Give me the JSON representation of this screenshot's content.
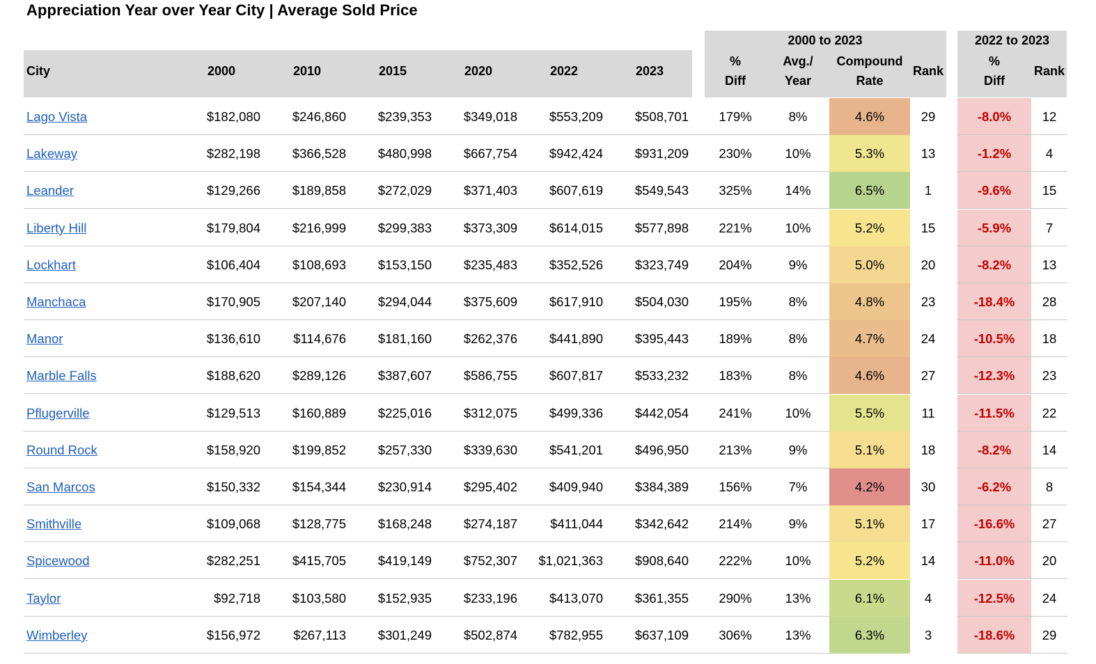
{
  "title": "Appreciation Year over Year City | Average Sold Price",
  "headers": {
    "city": "City",
    "y2000": "2000",
    "y2010": "2010",
    "y2015": "2015",
    "y2020": "2020",
    "y2022": "2022",
    "y2023": "2023",
    "group1": "2000 to 2023",
    "pct_diff_line1": "%",
    "pct_diff_line2": "Diff",
    "avg_line1": "Avg./",
    "avg_line2": "Year",
    "compound_line1": "Compound",
    "compound_line2": "Rate",
    "rank": "Rank",
    "group2": "2022 to 2023",
    "pct_diff2_line1": "%",
    "pct_diff2_line2": "Diff",
    "rank2": "Rank"
  },
  "colors": {
    "header_bg": "#d9d9d9",
    "link": "#1f5fbf",
    "negative_text": "#c00000",
    "negative_bg": "#f4cccc"
  },
  "rows": [
    {
      "city": "Lago Vista",
      "y2000": "$182,080",
      "y2010": "$246,860",
      "y2015": "$239,353",
      "y2020": "$349,018",
      "y2022": "$553,209",
      "y2023": "$508,701",
      "pct_diff": "179%",
      "avg_year": "8%",
      "compound": "4.6%",
      "compound_color": "#e8b48b",
      "rank": "29",
      "diff_22_23": "-8.0%",
      "rank_22_23": "12"
    },
    {
      "city": "Lakeway",
      "y2000": "$282,198",
      "y2010": "$366,528",
      "y2015": "$480,998",
      "y2020": "$667,754",
      "y2022": "$942,424",
      "y2023": "$931,209",
      "pct_diff": "230%",
      "avg_year": "10%",
      "compound": "5.3%",
      "compound_color": "#f0e690",
      "rank": "13",
      "diff_22_23": "-1.2%",
      "rank_22_23": "4"
    },
    {
      "city": "Leander",
      "y2000": "$129,266",
      "y2010": "$189,858",
      "y2015": "$272,029",
      "y2020": "$371,403",
      "y2022": "$607,619",
      "y2023": "$549,543",
      "pct_diff": "325%",
      "avg_year": "14%",
      "compound": "6.5%",
      "compound_color": "#b7d48f",
      "rank": "1",
      "diff_22_23": "-9.6%",
      "rank_22_23": "15"
    },
    {
      "city": "Liberty Hill",
      "y2000": "$179,804",
      "y2010": "$216,999",
      "y2015": "$299,383",
      "y2020": "$373,309",
      "y2022": "$614,015",
      "y2023": "$577,898",
      "pct_diff": "221%",
      "avg_year": "10%",
      "compound": "5.2%",
      "compound_color": "#f6e58e",
      "rank": "15",
      "diff_22_23": "-5.9%",
      "rank_22_23": "7"
    },
    {
      "city": "Lockhart",
      "y2000": "$106,404",
      "y2010": "$108,693",
      "y2015": "$153,150",
      "y2020": "$235,483",
      "y2022": "$352,526",
      "y2023": "$323,749",
      "pct_diff": "204%",
      "avg_year": "9%",
      "compound": "5.0%",
      "compound_color": "#f3d690",
      "rank": "20",
      "diff_22_23": "-8.2%",
      "rank_22_23": "13"
    },
    {
      "city": "Manchaca",
      "y2000": "$170,905",
      "y2010": "$207,140",
      "y2015": "$294,044",
      "y2020": "$375,609",
      "y2022": "$617,910",
      "y2023": "$504,030",
      "pct_diff": "195%",
      "avg_year": "8%",
      "compound": "4.8%",
      "compound_color": "#edc48c",
      "rank": "23",
      "diff_22_23": "-18.4%",
      "rank_22_23": "28"
    },
    {
      "city": "Manor",
      "y2000": "$136,610",
      "y2010": "$114,676",
      "y2015": "$181,160",
      "y2020": "$262,376",
      "y2022": "$441,890",
      "y2023": "$395,443",
      "pct_diff": "189%",
      "avg_year": "8%",
      "compound": "4.7%",
      "compound_color": "#ebbd8c",
      "rank": "24",
      "diff_22_23": "-10.5%",
      "rank_22_23": "18"
    },
    {
      "city": "Marble Falls",
      "y2000": "$188,620",
      "y2010": "$289,126",
      "y2015": "$387,607",
      "y2020": "$586,755",
      "y2022": "$607,817",
      "y2023": "$533,232",
      "pct_diff": "183%",
      "avg_year": "8%",
      "compound": "4.6%",
      "compound_color": "#e8b48b",
      "rank": "27",
      "diff_22_23": "-12.3%",
      "rank_22_23": "23"
    },
    {
      "city": "Pflugerville",
      "y2000": "$129,513",
      "y2010": "$160,889",
      "y2015": "$225,016",
      "y2020": "$312,075",
      "y2022": "$499,336",
      "y2023": "$442,054",
      "pct_diff": "241%",
      "avg_year": "10%",
      "compound": "5.5%",
      "compound_color": "#e4e48f",
      "rank": "11",
      "diff_22_23": "-11.5%",
      "rank_22_23": "22"
    },
    {
      "city": "Round Rock",
      "y2000": "$158,920",
      "y2010": "$199,852",
      "y2015": "$257,330",
      "y2020": "$339,630",
      "y2022": "$541,201",
      "y2023": "$496,950",
      "pct_diff": "213%",
      "avg_year": "9%",
      "compound": "5.1%",
      "compound_color": "#f5de8f",
      "rank": "18",
      "diff_22_23": "-8.2%",
      "rank_22_23": "14"
    },
    {
      "city": "San Marcos",
      "y2000": "$150,332",
      "y2010": "$154,344",
      "y2015": "$230,914",
      "y2020": "$295,402",
      "y2022": "$409,940",
      "y2023": "$384,389",
      "pct_diff": "156%",
      "avg_year": "7%",
      "compound": "4.2%",
      "compound_color": "#df8e8a",
      "rank": "30",
      "diff_22_23": "-6.2%",
      "rank_22_23": "8"
    },
    {
      "city": "Smithville",
      "y2000": "$109,068",
      "y2010": "$128,775",
      "y2015": "$168,248",
      "y2020": "$274,187",
      "y2022": "$411,044",
      "y2023": "$342,642",
      "pct_diff": "214%",
      "avg_year": "9%",
      "compound": "5.1%",
      "compound_color": "#f5de8f",
      "rank": "17",
      "diff_22_23": "-16.6%",
      "rank_22_23": "27"
    },
    {
      "city": "Spicewood",
      "y2000": "$282,251",
      "y2010": "$415,705",
      "y2015": "$419,149",
      "y2020": "$752,307",
      "y2022": "$1,021,363",
      "y2023": "$908,640",
      "pct_diff": "222%",
      "avg_year": "10%",
      "compound": "5.2%",
      "compound_color": "#f6e58e",
      "rank": "14",
      "diff_22_23": "-11.0%",
      "rank_22_23": "20"
    },
    {
      "city": "Taylor",
      "y2000": "$92,718",
      "y2010": "$103,580",
      "y2015": "$152,935",
      "y2020": "$233,196",
      "y2022": "$413,070",
      "y2023": "$361,355",
      "pct_diff": "290%",
      "avg_year": "13%",
      "compound": "6.1%",
      "compound_color": "#c9da8c",
      "rank": "4",
      "diff_22_23": "-12.5%",
      "rank_22_23": "24"
    },
    {
      "city": "Wimberley",
      "y2000": "$156,972",
      "y2010": "$267,113",
      "y2015": "$301,249",
      "y2020": "$502,874",
      "y2022": "$782,955",
      "y2023": "$637,109",
      "pct_diff": "306%",
      "avg_year": "13%",
      "compound": "6.3%",
      "compound_color": "#c0d78d",
      "rank": "3",
      "diff_22_23": "-18.6%",
      "rank_22_23": "29"
    }
  ]
}
